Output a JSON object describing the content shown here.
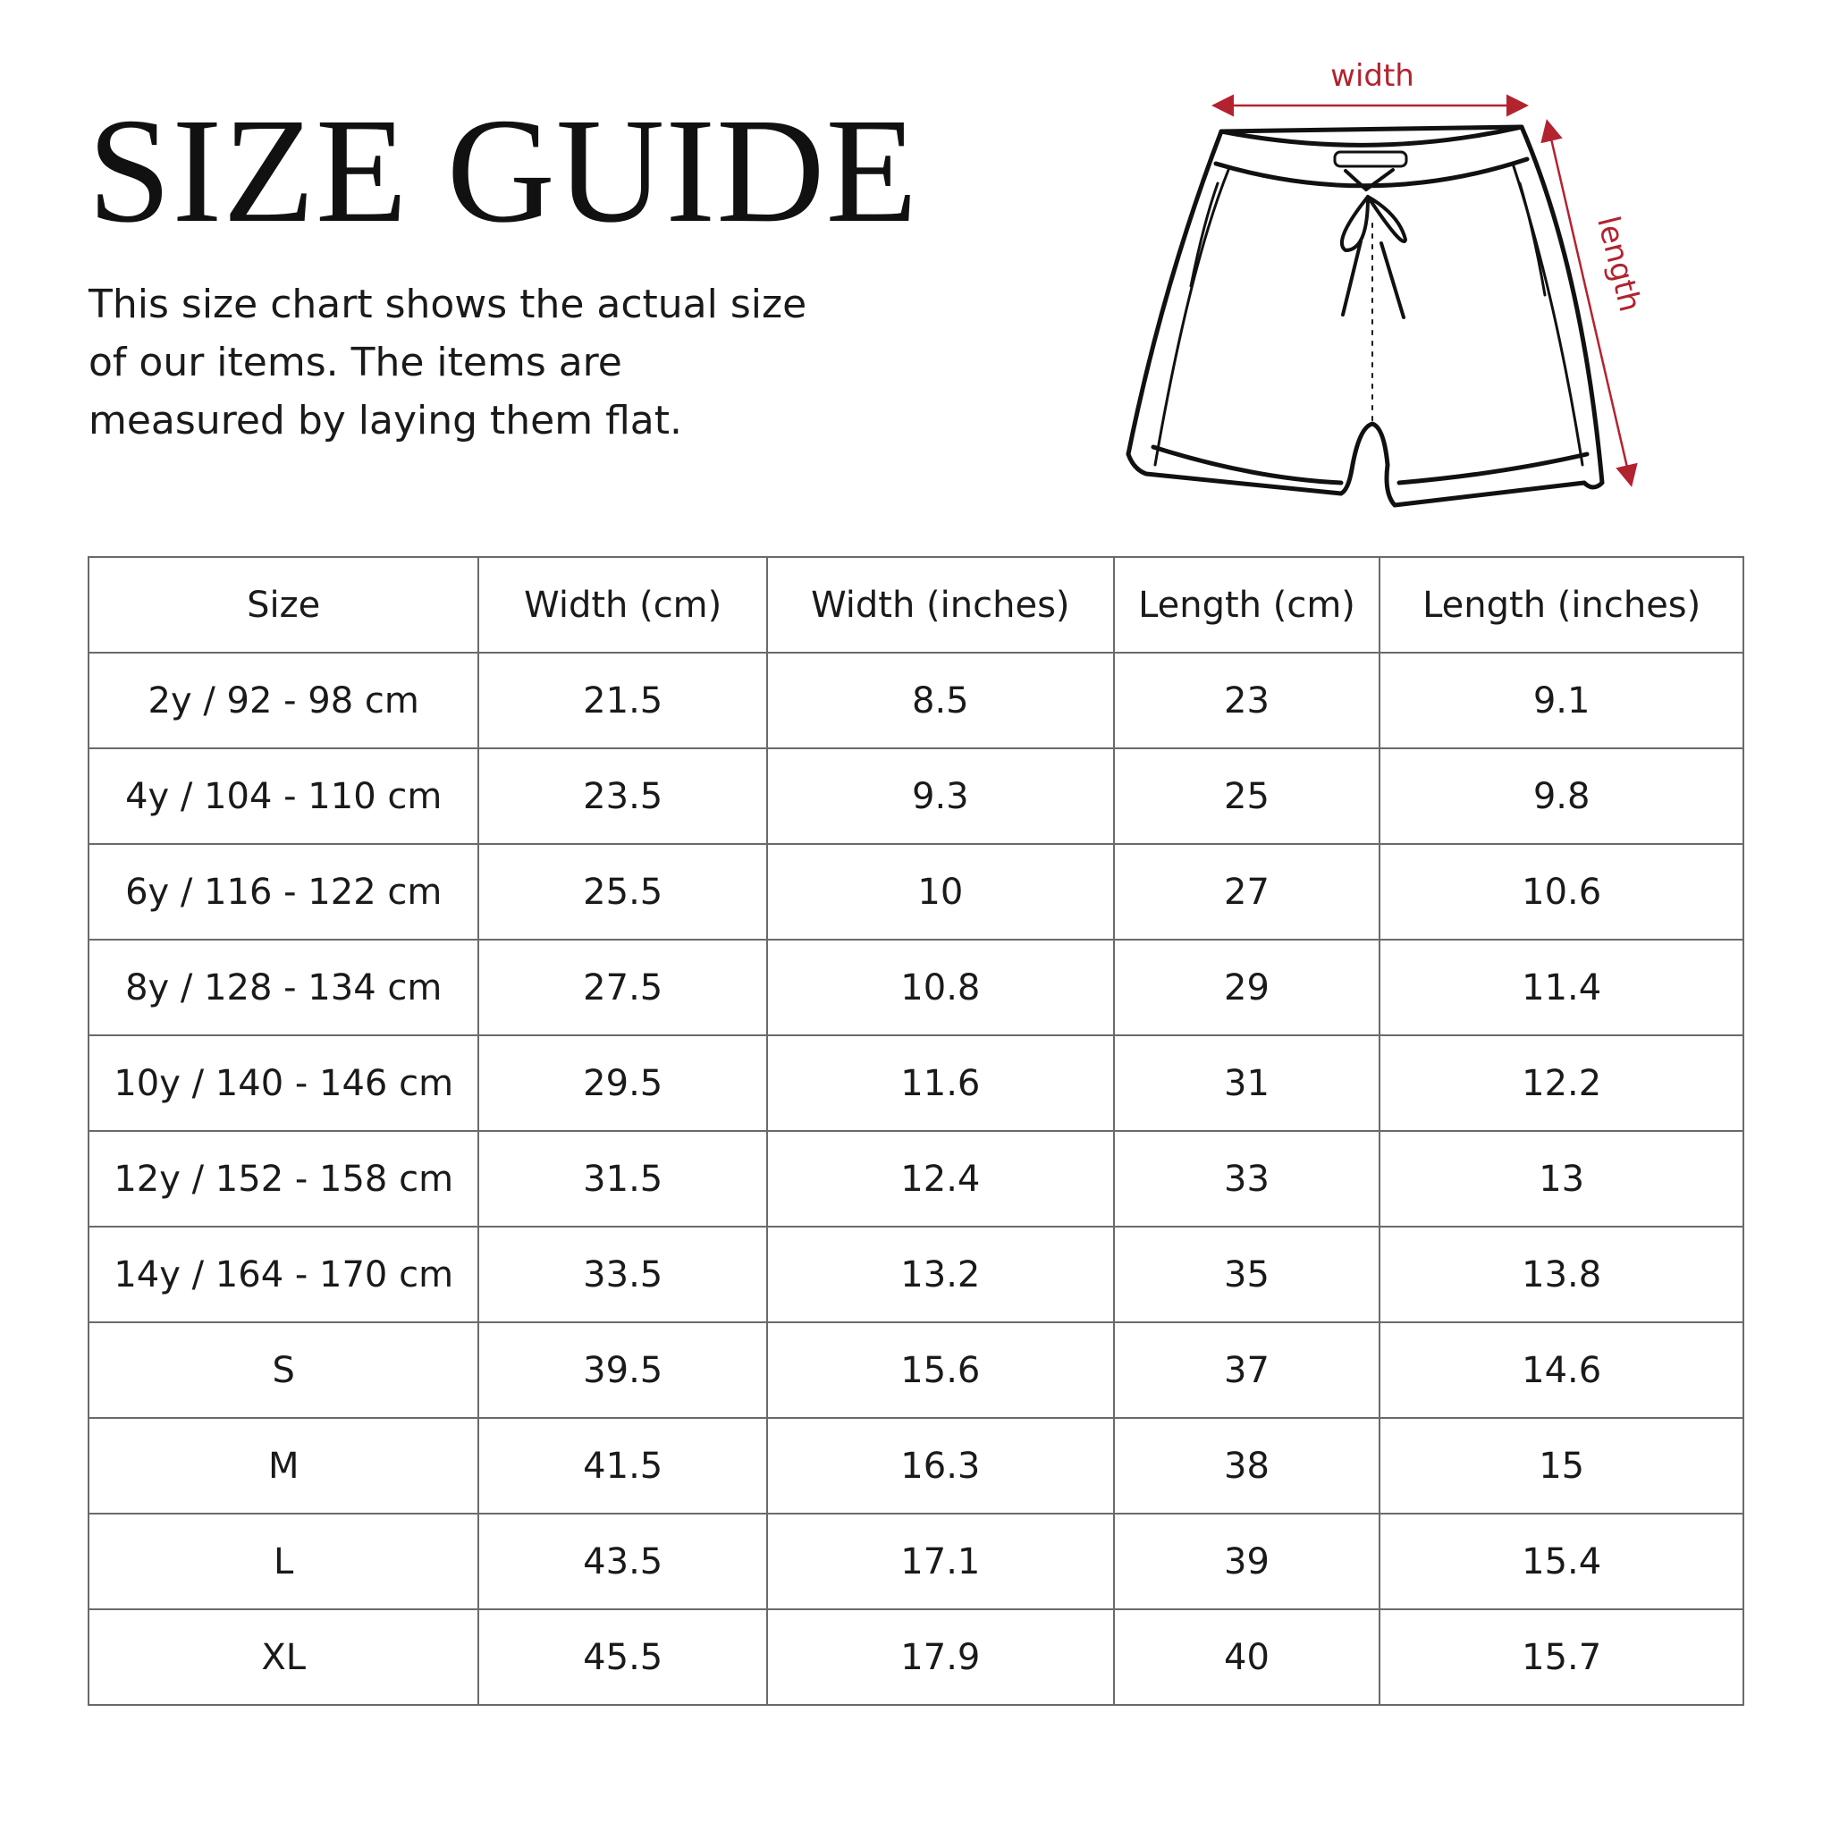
{
  "title": "SIZE GUIDE",
  "description": "This size chart shows the actual size of our items. The items are measured by laying them flat.",
  "illustration": {
    "subject": "shorts-line-drawing",
    "width_label": "width",
    "length_label": "length",
    "accent_color": "#b3222f"
  },
  "table": {
    "headers": [
      "Size",
      "Width (cm)",
      "Width (inches)",
      "Length (cm)",
      "Length (inches)"
    ],
    "rows": [
      [
        "2y / 92 - 98 cm",
        "21.5",
        "8.5",
        "23",
        "9.1"
      ],
      [
        "4y / 104 - 110 cm",
        "23.5",
        "9.3",
        "25",
        "9.8"
      ],
      [
        "6y / 116 - 122 cm",
        "25.5",
        "10",
        "27",
        "10.6"
      ],
      [
        "8y / 128 - 134 cm",
        "27.5",
        "10.8",
        "29",
        "11.4"
      ],
      [
        "10y / 140 - 146 cm",
        "29.5",
        "11.6",
        "31",
        "12.2"
      ],
      [
        "12y / 152 - 158 cm",
        "31.5",
        "12.4",
        "33",
        "13"
      ],
      [
        "14y / 164 - 170 cm",
        "33.5",
        "13.2",
        "35",
        "13.8"
      ],
      [
        "S",
        "39.5",
        "15.6",
        "37",
        "14.6"
      ],
      [
        "M",
        "41.5",
        "16.3",
        "38",
        "15"
      ],
      [
        "L",
        "43.5",
        "17.1",
        "39",
        "15.4"
      ],
      [
        "XL",
        "45.5",
        "17.9",
        "40",
        "15.7"
      ]
    ]
  }
}
